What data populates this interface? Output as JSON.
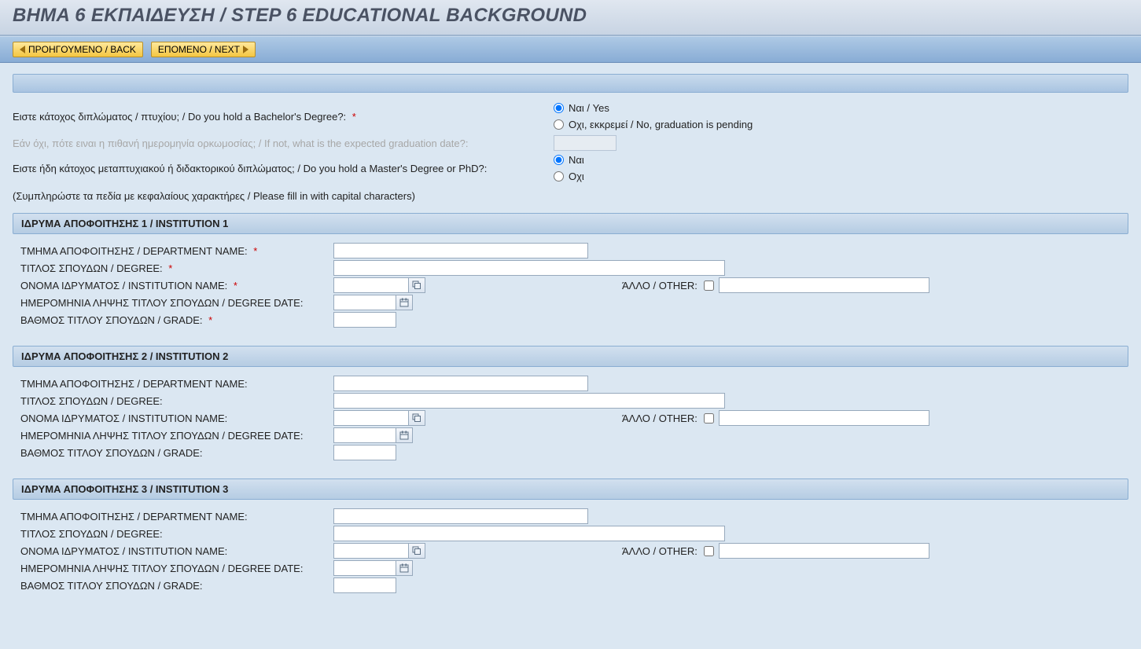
{
  "title": "ΒΗΜΑ 6 ΕΚΠΑΙΔΕΥΣΗ / STEP 6 EDUCATIONAL BACKGROUND",
  "nav": {
    "back": "ΠΡΟΗΓΟΥΜΕΝΟ / BACK",
    "next": "ΕΠΟΜΕΝΟ / NEXT"
  },
  "questions": {
    "bachelor_label": "Ειστε κάτοχος διπλώματος / πτυχίου; / Do you hold a Bachelor's Degree?:",
    "bachelor_required": "*",
    "bachelor_yes": "Ναι / Yes",
    "bachelor_no": "Οχι, εκκρεμεί / No, graduation is pending",
    "expected_date_label": "Εάν όχι, πότε ειναι η πιθανή ημερομηνία ορκωμοσίας; / If not, what is the expected graduation date?:",
    "masters_label": "Ειστε ήδη κάτοχος μεταπτυχιακού ή διδακτορικού διπλώματος; / Do you hold a Master's Degree or PhD?:",
    "masters_yes": "Ναι",
    "masters_no": "Οχι",
    "hint": "(Συμπληρώστε τα πεδία με κεφαλαίους χαρακτήρες / Please fill in with capital characters)"
  },
  "labels": {
    "dept": "ΤΜΗΜΑ ΑΠΟΦΟΙΤΗΣΗΣ / DEPARTMENT NAME:",
    "degree": "ΤΙΤΛΟΣ ΣΠΟΥΔΩΝ / DEGREE:",
    "inst": "ΟΝΟΜΑ ΙΔΡΥΜΑΤΟΣ / INSTITUTION NAME:",
    "date": "ΗΜΕΡΟΜΗΝΙΑ ΛΗΨΗΣ ΤΙΤΛΟΥ ΣΠΟΥΔΩΝ / DEGREE DATE:",
    "grade": "ΒΑΘΜΟΣ ΤΙΤΛΟΥ ΣΠΟΥΔΩΝ / GRADE:",
    "other": "ΆΛΛΟ / OTHER:",
    "req": "*"
  },
  "sections": [
    {
      "head": "ΙΔΡΥΜΑ ΑΠΟΦΟΙΤΗΣΗΣ 1 / INSTITUTION 1",
      "required": true
    },
    {
      "head": "ΙΔΡΥΜΑ ΑΠΟΦΟΙΤΗΣΗΣ 2 / INSTITUTION 2",
      "required": false
    },
    {
      "head": "ΙΔΡΥΜΑ ΑΠΟΦΟΙΤΗΣΗΣ 3 / INSTITUTION 3",
      "required": false
    }
  ],
  "colors": {
    "page_bg": "#dbe7f2",
    "required": "#cc0000",
    "header_grad_top": "#e0e7f0",
    "header_grad_bot": "#c8d4e3",
    "btn_grad_top": "#ffe89c",
    "btn_grad_bot": "#f4c642"
  }
}
